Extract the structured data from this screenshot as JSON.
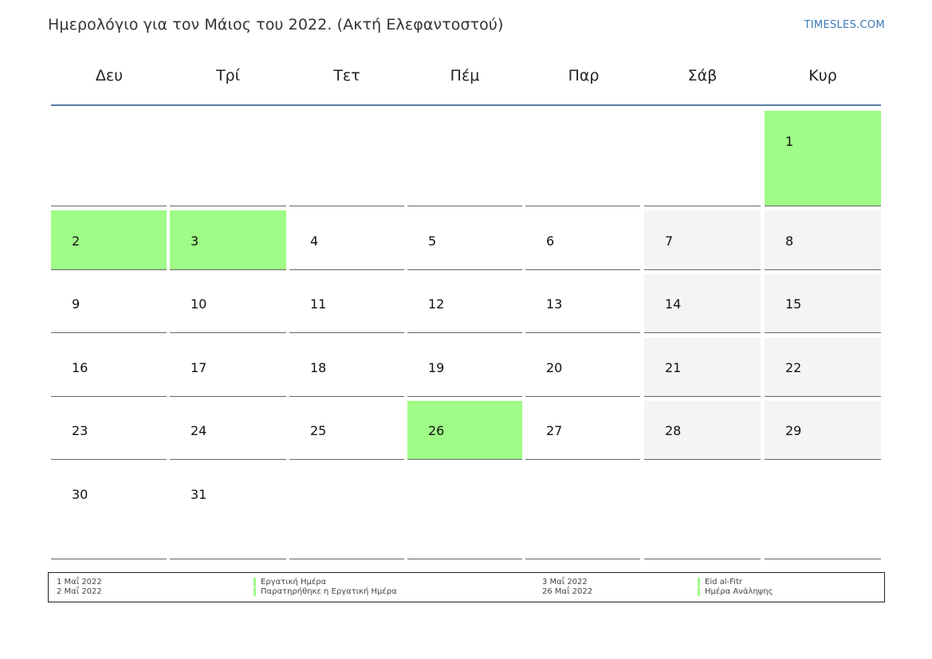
{
  "header": {
    "title": "Ημερολόγιο για τον Μάιος του 2022. (Ακτή Ελεφαντοστού)",
    "brand": "TIMESLES.COM"
  },
  "weekdays": [
    "Δευ",
    "Τρί",
    "Τετ",
    "Πέμ",
    "Παρ",
    "Σάβ",
    "Κυρ"
  ],
  "weeks": [
    [
      "",
      "",
      "",
      "",
      "",
      "",
      "1"
    ],
    [
      "2",
      "3",
      "4",
      "5",
      "6",
      "7",
      "8"
    ],
    [
      "9",
      "10",
      "11",
      "12",
      "13",
      "14",
      "15"
    ],
    [
      "16",
      "17",
      "18",
      "19",
      "20",
      "21",
      "22"
    ],
    [
      "23",
      "24",
      "25",
      "26",
      "27",
      "28",
      "29"
    ],
    [
      "30",
      "31",
      "",
      "",
      "",
      "",
      ""
    ]
  ],
  "holiday_days": [
    "1",
    "2",
    "3",
    "26"
  ],
  "colors": {
    "holiday": "#9ffc87",
    "weekend": "#f4f4f4",
    "header_rule": "#5b7aa5",
    "brand": "#3a78b8"
  },
  "legend": [
    {
      "date": "1 Μαΐ 2022",
      "name": "Εργατική Ημέρα"
    },
    {
      "date": "2 Μαΐ 2022",
      "name": "Παρατηρήθηκε η Εργατική Ημέρα"
    },
    {
      "date": "3 Μαΐ 2022",
      "name": "Eid al-Fitr"
    },
    {
      "date": "26 Μαΐ 2022",
      "name": "Ημέρα Ανάληψης"
    }
  ]
}
